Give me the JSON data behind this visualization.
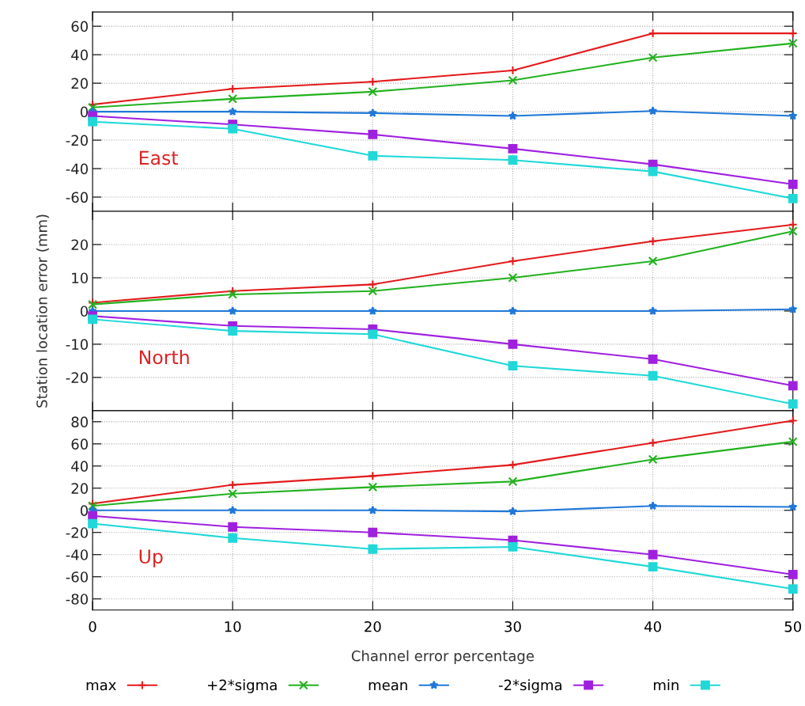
{
  "chart_data": [
    {
      "type": "line",
      "x": [
        0,
        10,
        20,
        30,
        40,
        50
      ],
      "xlim": [
        0,
        50
      ],
      "xticks": [
        0,
        10,
        20,
        30,
        40,
        50
      ],
      "ylim": [
        -70,
        70
      ],
      "yticks": [
        -60,
        -40,
        -20,
        0,
        20,
        40,
        60
      ],
      "grid": true,
      "tick_labels": "y",
      "line_style": "solid",
      "annotations": [
        "East"
      ],
      "series": [
        {
          "color": "#e31a1c",
          "marker": "cross",
          "values": [
            5,
            16,
            21,
            29,
            55,
            55
          ]
        },
        {
          "color": "#22b11e",
          "marker": "x",
          "values": [
            3,
            9,
            14,
            22,
            38,
            48
          ]
        },
        {
          "color": "#1f78d8",
          "marker": "star",
          "values": [
            0,
            0,
            -1,
            -3,
            0.5,
            -3
          ]
        },
        {
          "color": "#a020e0",
          "marker": "square",
          "values": [
            -3,
            -9,
            -16,
            -26,
            -37,
            -51
          ]
        },
        {
          "color": "#20d8d8",
          "marker": "square",
          "values": [
            -7,
            -12,
            -31,
            -34,
            -42,
            -61
          ]
        }
      ]
    },
    {
      "type": "line",
      "x": [
        0,
        10,
        20,
        30,
        40,
        50
      ],
      "xlim": [
        0,
        50
      ],
      "xticks": [
        0,
        10,
        20,
        30,
        40,
        50
      ],
      "ylim": [
        -30,
        30
      ],
      "yticks": [
        -20,
        -10,
        0,
        10,
        20
      ],
      "grid": true,
      "tick_labels": "y",
      "line_style": "solid",
      "ylabel": "Station location error (mm)",
      "annotations": [
        "North"
      ],
      "series": [
        {
          "color": "#e31a1c",
          "marker": "cross",
          "values": [
            2.5,
            6,
            8,
            15,
            21,
            26
          ]
        },
        {
          "color": "#22b11e",
          "marker": "x",
          "values": [
            2,
            5,
            6,
            10,
            15,
            24
          ]
        },
        {
          "color": "#1f78d8",
          "marker": "star",
          "values": [
            0,
            0,
            0,
            0,
            0,
            0.5
          ]
        },
        {
          "color": "#a020e0",
          "marker": "square",
          "values": [
            -1.5,
            -4.5,
            -5.5,
            -10,
            -14.5,
            -22.5
          ]
        },
        {
          "color": "#20d8d8",
          "marker": "square",
          "values": [
            -2.5,
            -6,
            -7,
            -16.5,
            -19.5,
            -28
          ]
        }
      ]
    },
    {
      "type": "line",
      "x": [
        0,
        10,
        20,
        30,
        40,
        50
      ],
      "xlim": [
        0,
        50
      ],
      "xticks": [
        0,
        10,
        20,
        30,
        40,
        50
      ],
      "ylim": [
        -90,
        90
      ],
      "yticks": [
        -80,
        -60,
        -40,
        -20,
        0,
        20,
        40,
        60,
        80
      ],
      "grid": true,
      "line_style": "solid",
      "xlabel": "Channel error percentage",
      "legend": "bottom",
      "annotations": [
        "Up"
      ],
      "series": [
        {
          "name": "max",
          "color": "#e31a1c",
          "marker": "cross",
          "values": [
            6,
            23,
            31,
            41,
            61,
            81
          ]
        },
        {
          "name": "+2*sigma",
          "color": "#22b11e",
          "marker": "x",
          "values": [
            4,
            15,
            21,
            26,
            46,
            62
          ]
        },
        {
          "name": "mean",
          "color": "#1f78d8",
          "marker": "star",
          "values": [
            0,
            0,
            0,
            -1,
            4,
            3
          ]
        },
        {
          "name": "-2*sigma",
          "color": "#a020e0",
          "marker": "square",
          "values": [
            -5,
            -15,
            -20,
            -27,
            -40,
            -58
          ]
        },
        {
          "name": "min",
          "color": "#20d8d8",
          "marker": "square",
          "values": [
            -12,
            -25,
            -35,
            -33,
            -51,
            -71
          ]
        }
      ]
    }
  ]
}
